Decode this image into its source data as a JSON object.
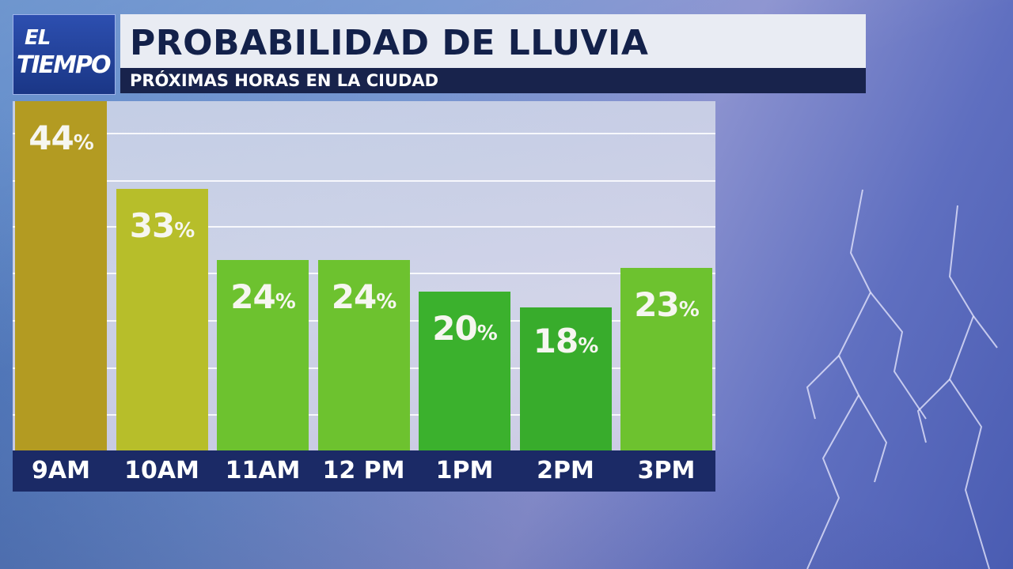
{
  "brand": {
    "line1": "EL",
    "line2": "TIEMPO"
  },
  "header": {
    "title": "PROBABILIDAD DE LLUVIA",
    "subtitle": "PRÓXIMAS HORAS EN LA CIUDAD"
  },
  "chart_data": {
    "type": "bar",
    "title": "PROBABILIDAD DE LLUVIA",
    "subtitle": "PRÓXIMAS HORAS EN LA CIUDAD",
    "categories": [
      "9AM",
      "10AM",
      "11AM",
      "12 PM",
      "1PM",
      "2PM",
      "3PM"
    ],
    "values": [
      44,
      33,
      24,
      24,
      20,
      18,
      23
    ],
    "value_suffix": "%",
    "bar_colors": [
      "#b39b22",
      "#b7be2a",
      "#6dc22f",
      "#6dc22f",
      "#3bb12d",
      "#38ac2c",
      "#6dc22f"
    ],
    "ylim": [
      0,
      44
    ],
    "grid": true,
    "legend": "none"
  }
}
